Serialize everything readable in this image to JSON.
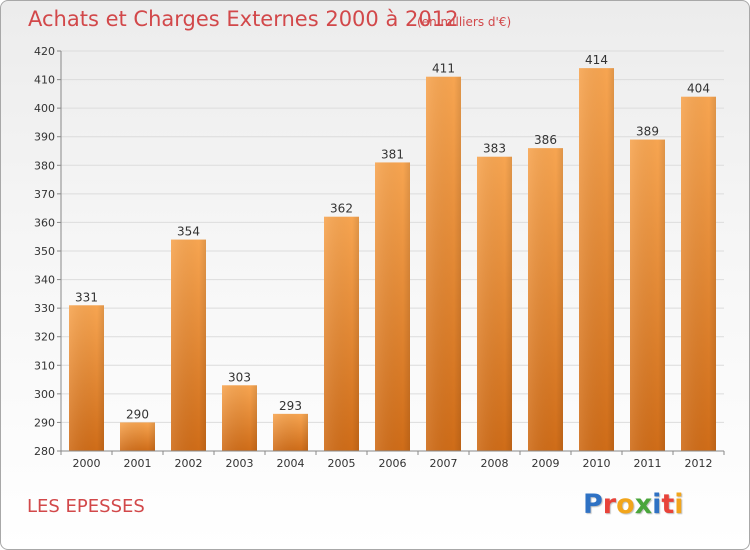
{
  "header": {
    "title": "Achats et Charges Externes 2000 à 2012",
    "subtitle": "(en milliers d'€)"
  },
  "footer": {
    "location": "LES EPESSES",
    "logo_text": "Proxiti",
    "logo_letters": [
      {
        "char": "P",
        "color": "#2f72c4"
      },
      {
        "char": "r",
        "color": "#e8433a"
      },
      {
        "char": "o",
        "color": "#f2a51b"
      },
      {
        "char": "x",
        "color": "#4aa63b"
      },
      {
        "char": "i",
        "color": "#2f72c4"
      },
      {
        "char": "t",
        "color": "#e8433a"
      },
      {
        "char": "i",
        "color": "#f2a51b"
      }
    ]
  },
  "colors": {
    "bar_top": "#f7a551",
    "bar_bottom": "#cf6c18",
    "accent_text": "#d2484a",
    "grid": "#dcdcdc"
  },
  "chart_data": {
    "type": "bar",
    "title": "Achats et Charges Externes 2000 à 2012",
    "subtitle": "(en milliers d'€)",
    "categories": [
      "2000",
      "2001",
      "2002",
      "2003",
      "2004",
      "2005",
      "2006",
      "2007",
      "2008",
      "2009",
      "2010",
      "2011",
      "2012"
    ],
    "values": [
      331,
      290,
      354,
      303,
      293,
      362,
      381,
      411,
      383,
      386,
      414,
      389,
      404
    ],
    "xlabel": "",
    "ylabel": "",
    "ylim": [
      280,
      420
    ],
    "yticks": [
      280,
      290,
      300,
      310,
      320,
      330,
      340,
      350,
      360,
      370,
      380,
      390,
      400,
      410,
      420
    ],
    "grid": true,
    "data_labels": true
  }
}
